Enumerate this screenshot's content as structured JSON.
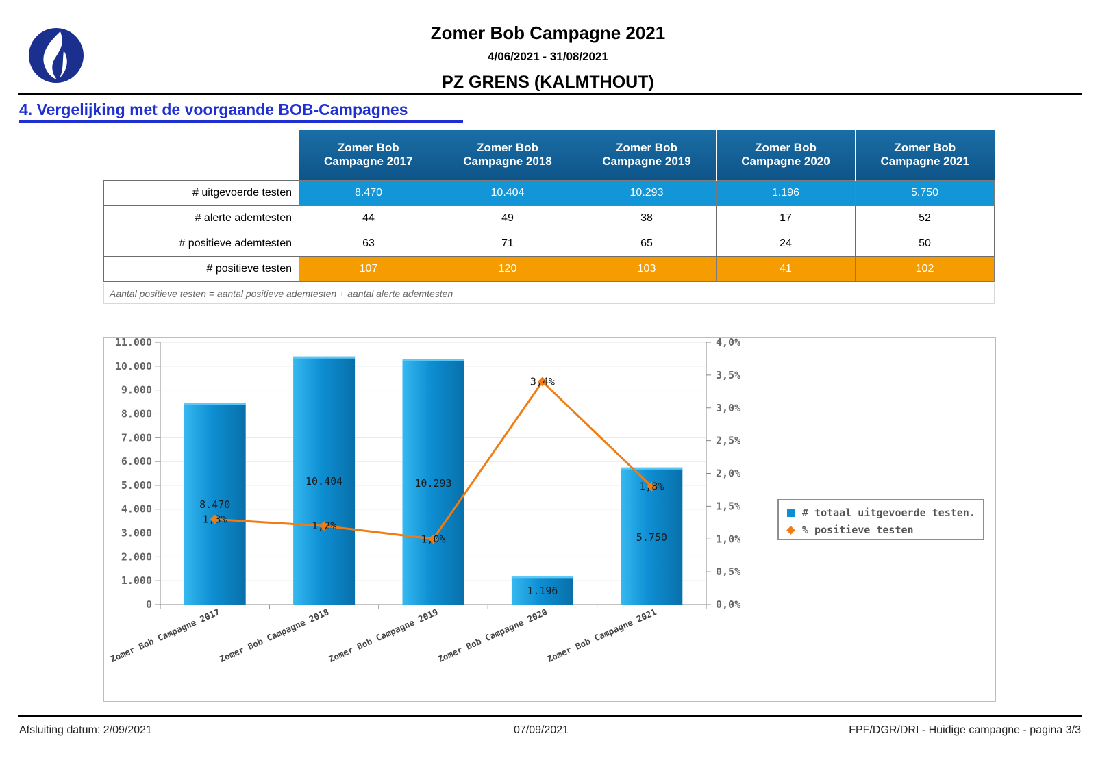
{
  "header": {
    "title": "Zomer Bob Campagne 2021",
    "period": "4/06/2021 - 31/08/2021",
    "zone": "PZ GRENS (KALMTHOUT)",
    "logo_icon": "police-flame-logo",
    "logo_color": "#1b2f8f"
  },
  "section": {
    "title": "4. Vergelijking met de voorgaande BOB-Campagnes"
  },
  "table": {
    "columns": [
      "Zomer Bob\nCampagne 2017",
      "Zomer Bob\nCampagne 2018",
      "Zomer Bob\nCampagne 2019",
      "Zomer Bob\nCampagne 2020",
      "Zomer Bob\nCampagne 2021"
    ],
    "rows": [
      {
        "label": "# uitgevoerde testen",
        "values": [
          "8.470",
          "10.404",
          "10.293",
          "1.196",
          "5.750"
        ]
      },
      {
        "label": "# alerte ademtesten",
        "values": [
          "44",
          "49",
          "38",
          "17",
          "52"
        ]
      },
      {
        "label": "# positieve ademtesten",
        "values": [
          "63",
          "71",
          "65",
          "24",
          "50"
        ]
      },
      {
        "label": "# positieve testen",
        "values": [
          "107",
          "120",
          "103",
          "41",
          "102"
        ]
      }
    ],
    "note": "Aantal positieve testen = aantal positieve ademtesten + aantal alerte ademtesten",
    "colors": {
      "header": "#0e5489",
      "tests_row": "#1296d8",
      "positive_row": "#f59d00"
    }
  },
  "chart_data": {
    "type": "bar",
    "categories": [
      "Zomer Bob Campagne 2017",
      "Zomer Bob Campagne 2018",
      "Zomer Bob Campagne 2019",
      "Zomer Bob Campagne 2020",
      "Zomer Bob Campagne 2021"
    ],
    "series": [
      {
        "name": "# totaal uitgevoerde testen.",
        "type": "bar",
        "axis": "left",
        "values": [
          8470,
          10404,
          10293,
          1196,
          5750
        ],
        "labels": [
          "8.470",
          "10.404",
          "10.293",
          "1.196",
          "5.750"
        ],
        "color": "#0e8fd3"
      },
      {
        "name": "% positieve testen",
        "type": "line",
        "axis": "right",
        "values": [
          1.3,
          1.2,
          1.0,
          3.4,
          1.8
        ],
        "labels": [
          "1,3%",
          "1,2%",
          "1,0%",
          "3,4%",
          "1,8%"
        ],
        "color": "#f07c13"
      }
    ],
    "ylim": [
      0,
      11000
    ],
    "y_ticks": [
      {
        "value": 0,
        "label": "0"
      },
      {
        "value": 1000,
        "label": "1.000"
      },
      {
        "value": 2000,
        "label": "2.000"
      },
      {
        "value": 3000,
        "label": "3.000"
      },
      {
        "value": 4000,
        "label": "4.000"
      },
      {
        "value": 5000,
        "label": "5.000"
      },
      {
        "value": 6000,
        "label": "6.000"
      },
      {
        "value": 7000,
        "label": "7.000"
      },
      {
        "value": 8000,
        "label": "8.000"
      },
      {
        "value": 9000,
        "label": "9.000"
      },
      {
        "value": 10000,
        "label": "10.000"
      },
      {
        "value": 11000,
        "label": "11.000"
      }
    ],
    "y2lim": [
      0,
      4.0
    ],
    "y2_ticks": [
      {
        "value": 0,
        "label": "0,0%"
      },
      {
        "value": 0.5,
        "label": "0,5%"
      },
      {
        "value": 1.0,
        "label": "1,0%"
      },
      {
        "value": 1.5,
        "label": "1,5%"
      },
      {
        "value": 2.0,
        "label": "2,0%"
      },
      {
        "value": 2.5,
        "label": "2,5%"
      },
      {
        "value": 3.0,
        "label": "3,0%"
      },
      {
        "value": 3.5,
        "label": "3,5%"
      },
      {
        "value": 4.0,
        "label": "4,0%"
      }
    ],
    "grid": true,
    "legend": "right",
    "legend_items": [
      "# totaal uitgevoerde testen.",
      "% positieve testen"
    ]
  },
  "footer": {
    "closing": "Afsluiting datum: 2/09/2021",
    "date": "07/09/2021",
    "page": "FPF/DGR/DRI - Huidige campagne - pagina 3/3"
  }
}
